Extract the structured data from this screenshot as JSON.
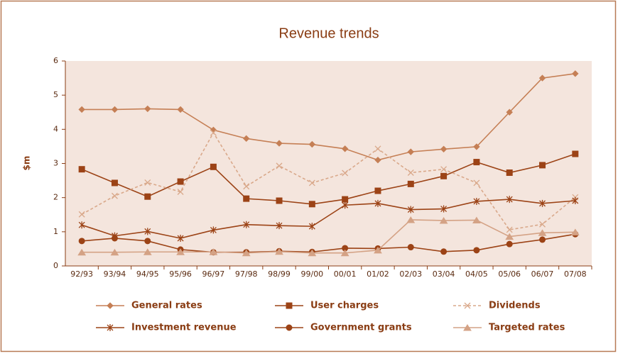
{
  "chart_data": {
    "type": "line",
    "title": "Revenue trends",
    "y_label": "$m",
    "categories": [
      "92/93",
      "93/94",
      "94/95",
      "95/96",
      "96/97",
      "97/98",
      "98/99",
      "99/00",
      "00/01",
      "01/02",
      "02/03",
      "03/04",
      "04/05",
      "05/06",
      "06/07",
      "07/08"
    ],
    "ylim": [
      0,
      6
    ],
    "yticks": [
      0,
      1,
      2,
      3,
      4,
      5,
      6
    ],
    "series": [
      {
        "name": "General rates",
        "color": "#c57f55",
        "marker": "diamond",
        "dash": false,
        "values": [
          4.58,
          4.58,
          4.6,
          4.58,
          3.98,
          3.73,
          3.59,
          3.56,
          3.43,
          3.1,
          3.34,
          3.42,
          3.49,
          4.5,
          5.5,
          5.63
        ]
      },
      {
        "name": "User charges",
        "color": "#9c4316",
        "marker": "square",
        "dash": false,
        "values": [
          2.83,
          2.43,
          2.03,
          2.47,
          2.9,
          1.97,
          1.91,
          1.81,
          1.95,
          2.2,
          2.4,
          2.63,
          3.04,
          2.73,
          2.95,
          3.28
        ]
      },
      {
        "name": "Dividends",
        "color": "#d9a88a",
        "marker": "x",
        "dash": true,
        "values": [
          1.51,
          2.05,
          2.44,
          2.17,
          3.9,
          2.33,
          2.93,
          2.43,
          2.72,
          3.43,
          2.73,
          2.83,
          2.43,
          1.06,
          1.22,
          2.01
        ]
      },
      {
        "name": "Investment revenue",
        "color": "#9c4316",
        "marker": "star",
        "dash": false,
        "values": [
          1.2,
          0.88,
          1.01,
          0.81,
          1.05,
          1.21,
          1.18,
          1.16,
          1.78,
          1.83,
          1.65,
          1.67,
          1.89,
          1.95,
          1.83,
          1.91
        ]
      },
      {
        "name": "Government grants",
        "color": "#9c4316",
        "marker": "circle",
        "dash": false,
        "values": [
          0.73,
          0.81,
          0.73,
          0.48,
          0.4,
          0.4,
          0.43,
          0.41,
          0.52,
          0.51,
          0.55,
          0.42,
          0.46,
          0.64,
          0.77,
          0.93
        ]
      },
      {
        "name": "Targeted rates",
        "color": "#d4a285",
        "marker": "triangle",
        "dash": false,
        "values": [
          0.4,
          0.4,
          0.41,
          0.41,
          0.41,
          0.38,
          0.42,
          0.38,
          0.38,
          0.46,
          1.35,
          1.33,
          1.34,
          0.86,
          0.97,
          0.99
        ]
      }
    ]
  }
}
